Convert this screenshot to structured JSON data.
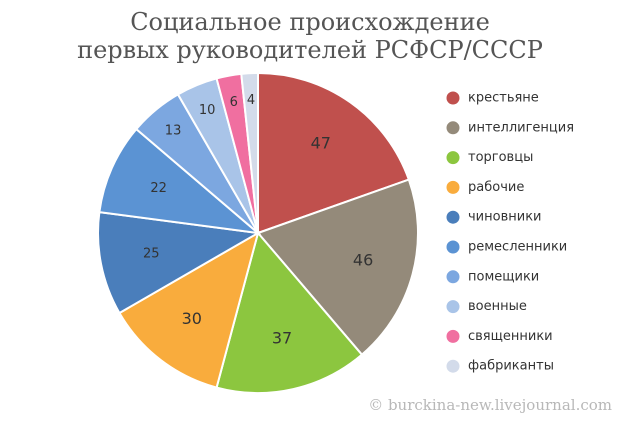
{
  "chart_data": {
    "type": "pie",
    "title": [
      "Социальное происхождение",
      "первых руководителей РСФСР/СССР"
    ],
    "categories": [
      "крестьяне",
      "интеллигенция",
      "торговцы",
      "рабочие",
      "чиновники",
      "ремесленники",
      "помещики",
      "военные",
      "священники",
      "фабриканты"
    ],
    "values": [
      47,
      46,
      37,
      30,
      25,
      22,
      13,
      10,
      6,
      4
    ],
    "colors": [
      "#c0504d",
      "#948a7a",
      "#8cc63f",
      "#f9ac3d",
      "#4a7ebb",
      "#5b93d3",
      "#7ca7e0",
      "#a9c4e8",
      "#f06fa0",
      "#d3dbea"
    ],
    "legend": "right",
    "watermark": "© burckina-new.livejournal.com"
  }
}
